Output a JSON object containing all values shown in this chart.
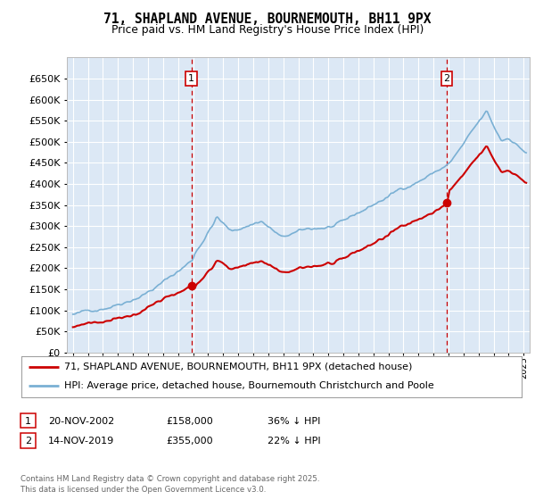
{
  "title": "71, SHAPLAND AVENUE, BOURNEMOUTH, BH11 9PX",
  "subtitle": "Price paid vs. HM Land Registry's House Price Index (HPI)",
  "hpi_label": "HPI: Average price, detached house, Bournemouth Christchurch and Poole",
  "price_label": "71, SHAPLAND AVENUE, BOURNEMOUTH, BH11 9PX (detached house)",
  "footer": "Contains HM Land Registry data © Crown copyright and database right 2025.\nThis data is licensed under the Open Government Licence v3.0.",
  "sale1_date": "20-NOV-2002",
  "sale1_price": "£158,000",
  "sale1_hpi": "36% ↓ HPI",
  "sale2_date": "14-NOV-2019",
  "sale2_price": "£355,000",
  "sale2_hpi": "22% ↓ HPI",
  "sale1_x": 2002.88,
  "sale1_y": 158000,
  "sale2_x": 2019.88,
  "sale2_y": 355000,
  "ylim": [
    0,
    700000
  ],
  "xlim_left": 1994.6,
  "xlim_right": 2025.4,
  "yticks": [
    0,
    50000,
    100000,
    150000,
    200000,
    250000,
    300000,
    350000,
    400000,
    450000,
    500000,
    550000,
    600000,
    650000
  ],
  "plot_bg": "#dce8f5",
  "hpi_color": "#7ab0d4",
  "price_color": "#cc0000",
  "vline_color": "#cc0000",
  "grid_color": "#ffffff",
  "title_color": "#000000"
}
